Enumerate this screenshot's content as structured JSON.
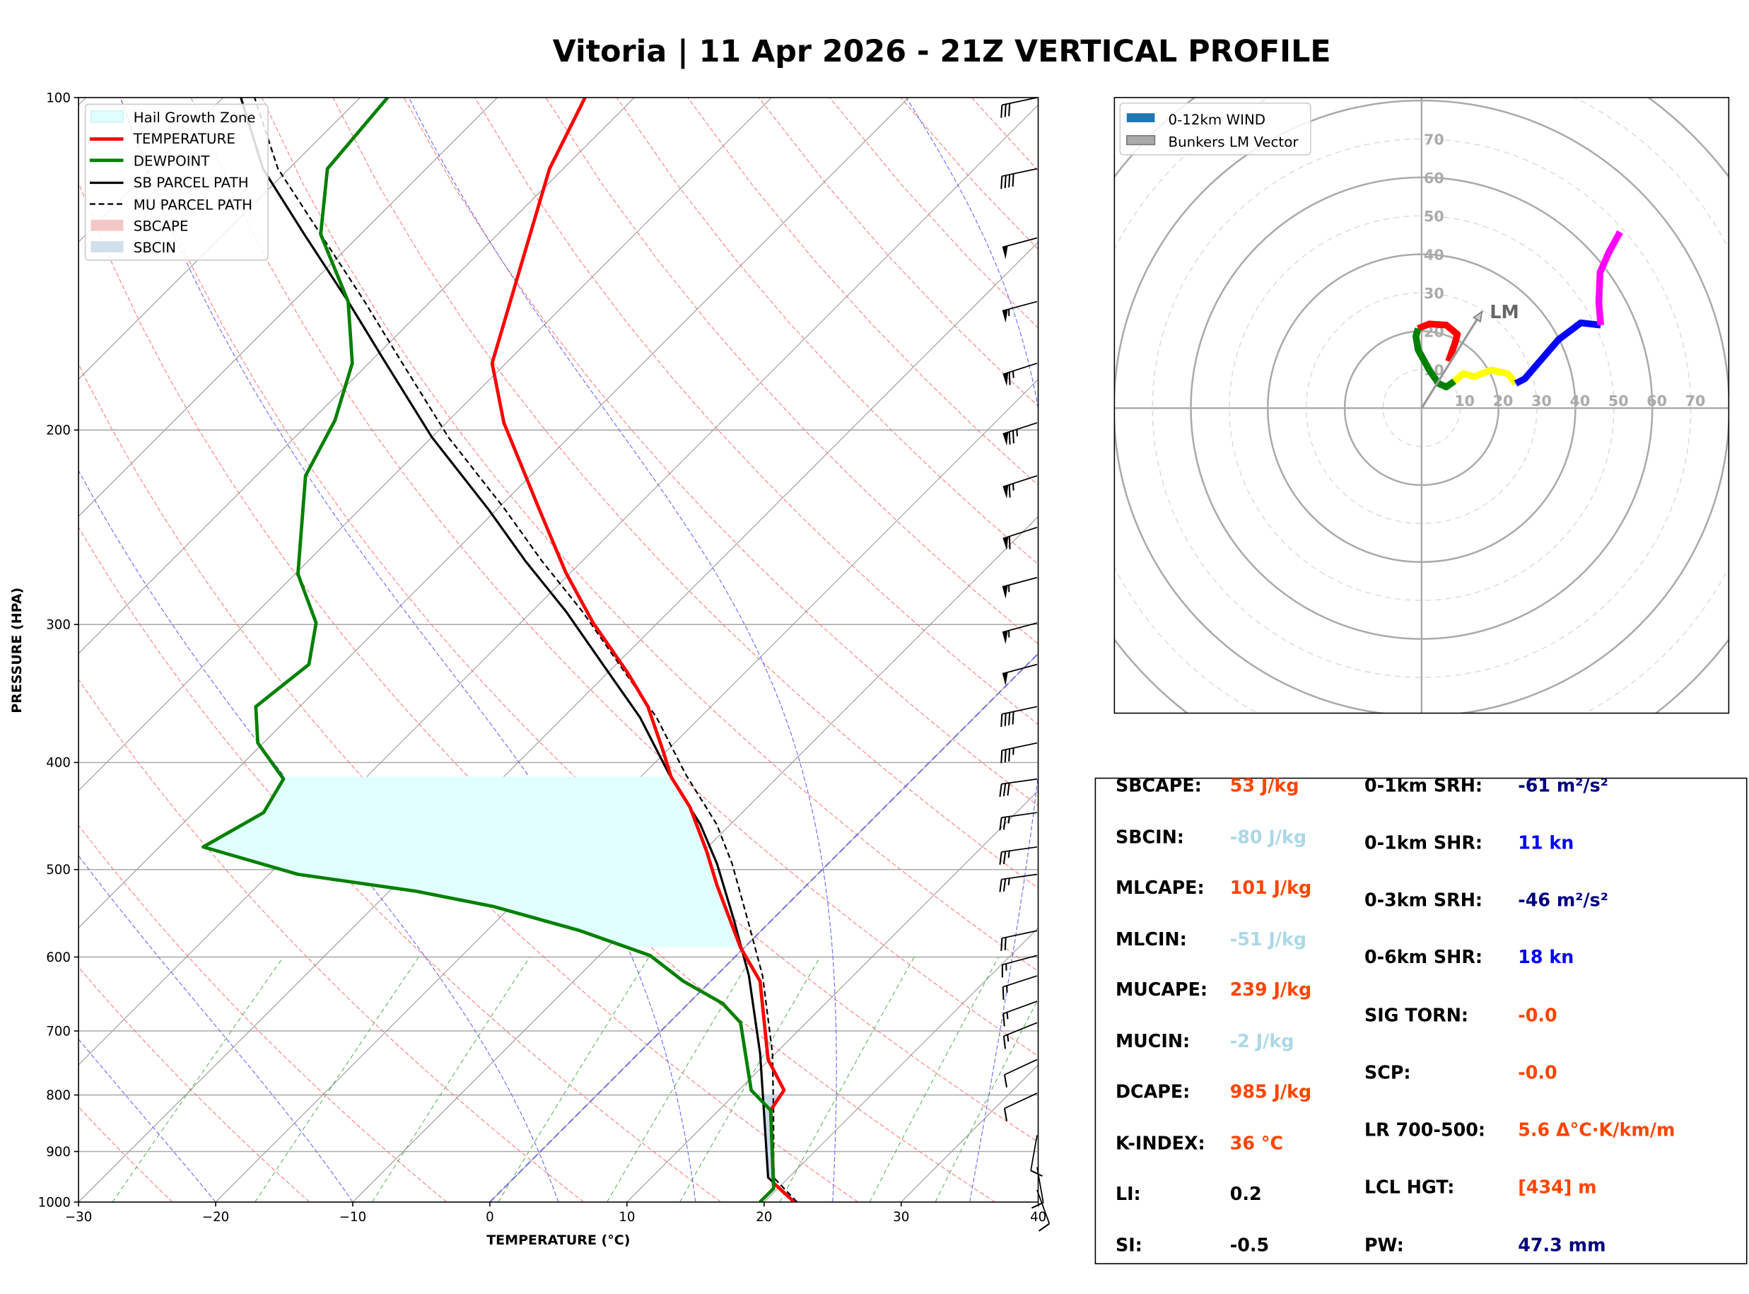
{
  "title": "Vitoria | 11 Apr 2026 - 21Z VERTICAL PROFILE",
  "skewt": {
    "xlabel": "TEMPERATURE (°C)",
    "ylabel": "PRESSURE (HPA)",
    "x_ticks": [
      "−30",
      "−20",
      "−10",
      "0",
      "10",
      "20",
      "30",
      "40"
    ],
    "y_ticks": [
      "100",
      "200",
      "300",
      "400",
      "500",
      "600",
      "700",
      "800",
      "900",
      "1000"
    ],
    "legend": [
      "Hail Growth Zone",
      "TEMPERATURE",
      "DEWPOINT",
      "SB PARCEL PATH",
      "MU PARCEL PATH",
      "SBCAPE",
      "SBCIN"
    ]
  },
  "hodograph": {
    "legend": [
      "0-12km WIND",
      "Bunkers LM Vector"
    ],
    "lm_label": "LM",
    "ring_labels": [
      "10",
      "20",
      "30",
      "40",
      "50",
      "60",
      "70"
    ]
  },
  "stats": {
    "left": [
      {
        "label": "SBCAPE:",
        "value": "53 J/kg",
        "color": "#ff4500"
      },
      {
        "label": "SBCIN:",
        "value": "-80 J/kg",
        "color": "#add8e6"
      },
      {
        "label": "MLCAPE:",
        "value": "101 J/kg",
        "color": "#ff4500"
      },
      {
        "label": "MLCIN:",
        "value": "-51 J/kg",
        "color": "#add8e6"
      },
      {
        "label": "MUCAPE:",
        "value": "239 J/kg",
        "color": "#ff4500"
      },
      {
        "label": "MUCIN:",
        "value": "-2 J/kg",
        "color": "#add8e6"
      },
      {
        "label": "DCAPE:",
        "value": "985 J/kg",
        "color": "#ff4500"
      },
      {
        "label": "K-INDEX:",
        "value": "36 °C",
        "color": "#ff4500"
      },
      {
        "label": "LI:",
        "value": "0.2",
        "color": "#000000"
      },
      {
        "label": "SI:",
        "value": "-0.5",
        "color": "#000000"
      }
    ],
    "right": [
      {
        "label": "0-1km SRH:",
        "value": "-61 m²/s²",
        "color": "#000080"
      },
      {
        "label": "0-1km SHR:",
        "value": "11 kn",
        "color": "#0000ff"
      },
      {
        "label": "0-3km SRH:",
        "value": "-46 m²/s²",
        "color": "#000080"
      },
      {
        "label": "0-6km SHR:",
        "value": "18 kn",
        "color": "#0000ff"
      },
      {
        "label": "SIG TORN:",
        "value": "-0.0",
        "color": "#ff4500"
      },
      {
        "label": "SCP:",
        "value": "-0.0",
        "color": "#ff4500"
      },
      {
        "label": "LR 700-500:",
        "value": "5.6 Δ°C·K/km/m",
        "color": "#ff4500"
      },
      {
        "label": "LCL HGT:",
        "value": "[434] m",
        "color": "#ff4500"
      },
      {
        "label": "PW:",
        "value": "47.3 mm",
        "color": "#000080"
      }
    ]
  },
  "chart_data": [
    {
      "type": "line",
      "subtype": "skew-T log-p",
      "xlabel": "TEMPERATURE (°C)",
      "ylabel": "PRESSURE (HPA)",
      "xlim": [
        -30,
        40
      ],
      "ylim": [
        1000,
        100
      ],
      "yscale": "log",
      "grid": true,
      "legend_position": "top-left",
      "colors": {
        "temperature": "#ff0000",
        "dewpoint": "#008000",
        "sb_parcel": "#000000",
        "mu_parcel": "#000000",
        "hgz": "#e0ffff",
        "sbcin": "#c9dbe9"
      },
      "series": [
        {
          "name": "TEMPERATURE",
          "p": [
            1000,
            961,
            826,
            792,
            743,
            631,
            588,
            517,
            482,
            439,
            412,
            391,
            356,
            332,
            299,
            269,
            236,
            197,
            174,
            116,
            100
          ],
          "T": [
            22.2,
            19.3,
            13.8,
            13.3,
            9.9,
            3.6,
            -0.3,
            -6.5,
            -9.7,
            -14.2,
            -17.8,
            -20.2,
            -24.6,
            -28.5,
            -34.7,
            -40.4,
            -46.9,
            -55.8,
            -61,
            -71,
            -73.6
          ]
        },
        {
          "name": "DEWPOINT",
          "p": [
            1000,
            972,
            826,
            792,
            688,
            661,
            631,
            598,
            568,
            540,
            523,
            505,
            477,
            444,
            414,
            384,
            356,
            326,
            299,
            270,
            220,
            196,
            174,
            153,
            133,
            116,
            100
          ],
          "T": [
            19.7,
            19.7,
            13.8,
            10.9,
            5.2,
            2.5,
            -2,
            -6.3,
            -13.2,
            -21.3,
            -28.1,
            -37.9,
            -46.8,
            -44.9,
            -45.9,
            -50.4,
            -53.2,
            -52.4,
            -54.9,
            -59.8,
            -66.4,
            -68.3,
            -71.2,
            -76,
            -82.9,
            -87.2,
            -88
          ]
        },
        {
          "name": "SB PARCEL PATH",
          "p": [
            1000,
            950,
            826,
            734,
            624,
            555,
            494,
            455,
            410,
            364,
            328,
            292,
            263,
            236,
            203,
            172,
            153,
            133,
            116,
            100
          ],
          "T": [
            22.2,
            18.5,
            13.3,
            8.9,
            2.4,
            -2.8,
            -8.1,
            -12.2,
            -18.1,
            -24.4,
            -30.6,
            -37.5,
            -44.1,
            -50.6,
            -60,
            -69.4,
            -76,
            -84.1,
            -91.9,
            -98.7
          ]
        },
        {
          "name": "MU PARCEL PATH",
          "p": [
            1000,
            950,
            826,
            734,
            624,
            555,
            494,
            455,
            410,
            364,
            328,
            292,
            263,
            236,
            203,
            172,
            153,
            133,
            116,
            100
          ],
          "T": [
            22.4,
            18.9,
            14.0,
            9.8,
            3.4,
            -1.8,
            -7.0,
            -11.0,
            -16.9,
            -23.2,
            -29.4,
            -36.3,
            -42.9,
            -49.4,
            -58.8,
            -68.2,
            -74.8,
            -82.9,
            -90.8,
            -97.7
          ]
        }
      ],
      "hail_growth_zone_hpa": [
        588,
        412
      ],
      "sbcin_hpa": [
        960,
        800
      ],
      "wind_barbs": [
        {
          "p": 100,
          "dir": 258,
          "spd": 30
        },
        {
          "p": 116,
          "dir": 258,
          "spd": 40
        },
        {
          "p": 134,
          "dir": 255,
          "spd": 50
        },
        {
          "p": 153,
          "dir": 255,
          "spd": 55
        },
        {
          "p": 174,
          "dir": 252,
          "spd": 65
        },
        {
          "p": 197,
          "dir": 252,
          "spd": 75
        },
        {
          "p": 220,
          "dir": 252,
          "spd": 65
        },
        {
          "p": 245,
          "dir": 252,
          "spd": 60
        },
        {
          "p": 272,
          "dir": 255,
          "spd": 55
        },
        {
          "p": 299,
          "dir": 255,
          "spd": 55
        },
        {
          "p": 326,
          "dir": 255,
          "spd": 50
        },
        {
          "p": 356,
          "dir": 258,
          "spd": 40
        },
        {
          "p": 384,
          "dir": 258,
          "spd": 35
        },
        {
          "p": 414,
          "dir": 262,
          "spd": 30
        },
        {
          "p": 444,
          "dir": 262,
          "spd": 25
        },
        {
          "p": 477,
          "dir": 262,
          "spd": 25
        },
        {
          "p": 505,
          "dir": 262,
          "spd": 25
        },
        {
          "p": 568,
          "dir": 258,
          "spd": 20
        },
        {
          "p": 598,
          "dir": 255,
          "spd": 15
        },
        {
          "p": 624,
          "dir": 252,
          "spd": 15
        },
        {
          "p": 658,
          "dir": 250,
          "spd": 15
        },
        {
          "p": 688,
          "dir": 248,
          "spd": 15
        },
        {
          "p": 743,
          "dir": 245,
          "spd": 10
        },
        {
          "p": 797,
          "dir": 245,
          "spd": 10
        },
        {
          "p": 870,
          "dir": 190,
          "spd": 10
        },
        {
          "p": 930,
          "dir": 170,
          "spd": 10
        },
        {
          "p": 975,
          "dir": 160,
          "spd": 10
        }
      ]
    },
    {
      "type": "line",
      "subtype": "hodograph",
      "units": "kt",
      "rings": [
        10,
        20,
        30,
        40,
        50,
        60,
        70
      ],
      "legend_position": "top-left",
      "segments": [
        {
          "color": "#ff0000",
          "u": [
            7,
            8.7,
            9.3,
            6.4,
            2,
            -0.9
          ],
          "v": [
            12.2,
            16.9,
            19.2,
            21.6,
            21.9,
            20.7
          ]
        },
        {
          "color": "#008000",
          "u": [
            -0.9,
            -1.5,
            -0.9,
            2,
            4.4,
            6.4,
            8.5
          ],
          "v": [
            20.7,
            18.7,
            15.2,
            9.9,
            6.4,
            5.5,
            7
          ]
        },
        {
          "color": "#ffff00",
          "u": [
            8.5,
            10.8,
            13.7,
            18.1,
            22.4,
            24.5
          ],
          "v": [
            7,
            9,
            8.2,
            9.9,
            9,
            6.4
          ]
        },
        {
          "color": "#0000ff",
          "u": [
            24.5,
            26.8,
            35.6,
            41.4,
            46.6
          ],
          "v": [
            6.4,
            7.6,
            17.8,
            22.2,
            21.6
          ]
        },
        {
          "color": "#ff00ff",
          "u": [
            46.6,
            46.1,
            46.4,
            48.7,
            51.6
          ],
          "v": [
            21.6,
            27.4,
            35.3,
            40.5,
            45.8
          ]
        }
      ],
      "bunkers_lm": {
        "u": 15.7,
        "v": 25.1
      }
    }
  ]
}
